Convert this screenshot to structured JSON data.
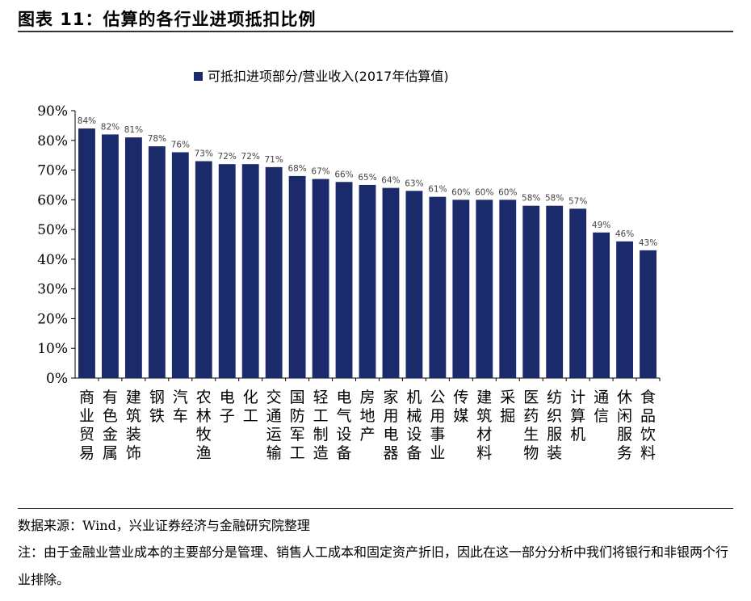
{
  "header": {
    "title": "图表 11：估算的各行业进项抵扣比例"
  },
  "footer": {
    "source": "数据来源：Wind，兴业证券经济与金融研究院整理",
    "note": "注：由于金融业营业成本的主要部分是管理、销售人工成本和固定资产折旧，因此在这一部分分析中我们将银行和非银两个行业排除。"
  },
  "chart_data": {
    "type": "bar",
    "title": "",
    "xlabel": "",
    "ylabel": "",
    "legend_position": "top-center",
    "grid": false,
    "ylim": [
      0,
      90
    ],
    "y_ticks": [
      "0%",
      "10%",
      "20%",
      "30%",
      "40%",
      "50%",
      "60%",
      "70%",
      "80%",
      "90%"
    ],
    "categories": [
      "商业贸易",
      "有色金属",
      "建筑装饰",
      "钢铁",
      "汽车",
      "农林牧渔",
      "电子",
      "化工",
      "交通运输",
      "国防军工",
      "轻工制造",
      "电气设备",
      "房地产",
      "家用电器",
      "机械设备",
      "公用事业",
      "传媒",
      "建筑材料",
      "采掘",
      "医药生物",
      "纺织服装",
      "计算机",
      "通信",
      "休闲服务",
      "食品饮料"
    ],
    "series": [
      {
        "name": "可抵扣进项部分/营业收入(2017年估算值)",
        "color": "#1b2a6b",
        "values": [
          84,
          82,
          81,
          78,
          76,
          73,
          72,
          72,
          71,
          68,
          67,
          66,
          65,
          64,
          63,
          61,
          60,
          60,
          60,
          58,
          58,
          57,
          49,
          46,
          43
        ],
        "labels": [
          "84%",
          "82%",
          "81%",
          "78%",
          "76%",
          "73%",
          "72%",
          "72%",
          "71%",
          "68%",
          "67%",
          "66%",
          "65%",
          "64%",
          "63%",
          "61%",
          "60%",
          "60%",
          "60%",
          "58%",
          "58%",
          "57%",
          "49%",
          "46%",
          "43%"
        ]
      }
    ]
  }
}
